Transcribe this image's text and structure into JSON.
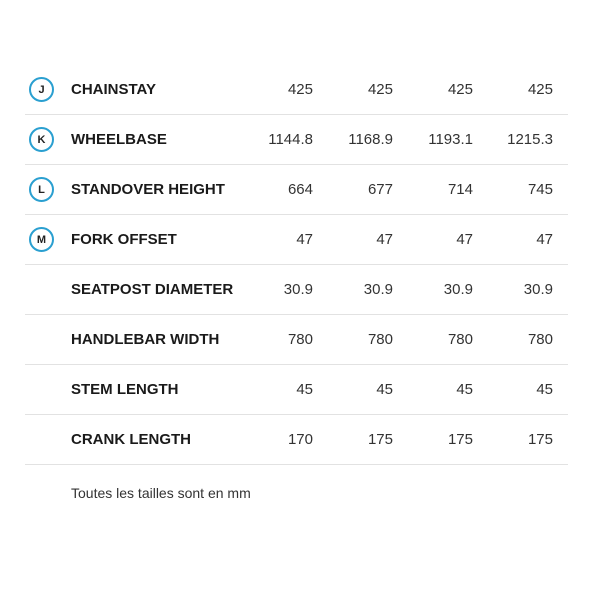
{
  "accent_color": "#2a9fd0",
  "rows": [
    {
      "badge": "J",
      "label": "CHAINSTAY",
      "values": [
        "425",
        "425",
        "425",
        "425"
      ]
    },
    {
      "badge": "K",
      "label": "WHEELBASE",
      "values": [
        "1144.8",
        "1168.9",
        "1193.1",
        "1215.3"
      ]
    },
    {
      "badge": "L",
      "label": "STANDOVER HEIGHT",
      "values": [
        "664",
        "677",
        "714",
        "745"
      ]
    },
    {
      "badge": "M",
      "label": "FORK OFFSET",
      "values": [
        "47",
        "47",
        "47",
        "47"
      ]
    },
    {
      "badge": null,
      "label": "SEATPOST DIAMETER",
      "values": [
        "30.9",
        "30.9",
        "30.9",
        "30.9"
      ]
    },
    {
      "badge": null,
      "label": "HANDLEBAR WIDTH",
      "values": [
        "780",
        "780",
        "780",
        "780"
      ]
    },
    {
      "badge": null,
      "label": "STEM LENGTH",
      "values": [
        "45",
        "45",
        "45",
        "45"
      ]
    },
    {
      "badge": null,
      "label": "CRANK LENGTH",
      "values": [
        "170",
        "175",
        "175",
        "175"
      ]
    }
  ],
  "note": "Toutes les tailles sont en mm"
}
